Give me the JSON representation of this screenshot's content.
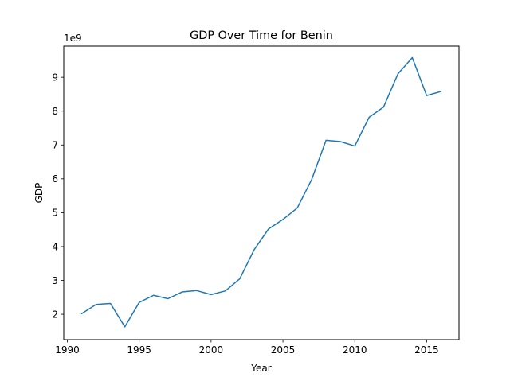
{
  "chart_data": {
    "type": "line",
    "title": "GDP Over Time for Benin",
    "xlabel": "Year",
    "ylabel": "GDP",
    "y_offset_label": "1e9",
    "xlim": [
      1989.75,
      2017.25
    ],
    "ylim": [
      1.25,
      9.92
    ],
    "x_ticks": [
      1990,
      1995,
      2000,
      2005,
      2010,
      2015
    ],
    "y_ticks": [
      2,
      3,
      4,
      5,
      6,
      7,
      8,
      9
    ],
    "grid": false,
    "series_color": "#1f77b4",
    "x": [
      1991,
      1992,
      1993,
      1994,
      1995,
      1996,
      1997,
      1998,
      1999,
      2000,
      2001,
      2002,
      2003,
      2004,
      2005,
      2006,
      2007,
      2008,
      2009,
      2010,
      2011,
      2012,
      2013,
      2014,
      2015,
      2016
    ],
    "y": [
      2.02,
      2.29,
      2.32,
      1.63,
      2.35,
      2.56,
      2.46,
      2.66,
      2.7,
      2.58,
      2.69,
      3.05,
      3.91,
      4.52,
      4.8,
      5.14,
      5.98,
      7.14,
      7.1,
      6.97,
      7.82,
      8.12,
      9.1,
      9.58,
      8.46,
      8.58
    ]
  }
}
